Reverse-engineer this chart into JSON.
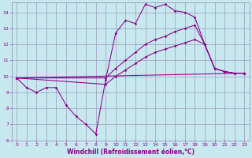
{
  "bg_color": "#c8e8f0",
  "grid_color": "#9999bb",
  "line_color": "#880088",
  "xlabel": "Windchill (Refroidissement éolien,°C)",
  "xlim": [
    -0.5,
    23.5
  ],
  "ylim": [
    6,
    14.6
  ],
  "yticks": [
    6,
    7,
    8,
    9,
    10,
    11,
    12,
    13,
    14
  ],
  "xticks": [
    0,
    1,
    2,
    3,
    4,
    5,
    6,
    7,
    8,
    9,
    10,
    11,
    12,
    13,
    14,
    15,
    16,
    17,
    18,
    19,
    20,
    21,
    22,
    23
  ],
  "line1_x": [
    0,
    1,
    2,
    3,
    4,
    5,
    6,
    7,
    8,
    9,
    10,
    11,
    12,
    13,
    14,
    15,
    16,
    17,
    18,
    19,
    20,
    21,
    22,
    23
  ],
  "line1_y": [
    9.9,
    9.3,
    9.0,
    9.3,
    9.3,
    8.2,
    7.5,
    7.0,
    6.4,
    9.8,
    12.7,
    13.5,
    13.3,
    14.5,
    14.3,
    14.5,
    14.1,
    14.0,
    13.7,
    12.0,
    10.5,
    10.3,
    10.2,
    10.2
  ],
  "line2_x": [
    0,
    23
  ],
  "line2_y": [
    9.9,
    10.2
  ],
  "line3_x": [
    0,
    9,
    10,
    11,
    12,
    13,
    14,
    15,
    16,
    17,
    18,
    19,
    20,
    21,
    22,
    23
  ],
  "line3_y": [
    9.9,
    9.9,
    10.5,
    11.0,
    11.5,
    12.0,
    12.3,
    12.5,
    12.8,
    13.0,
    13.2,
    12.0,
    10.5,
    10.3,
    10.2,
    10.2
  ],
  "line4_x": [
    0,
    9,
    10,
    11,
    12,
    13,
    14,
    15,
    16,
    17,
    18,
    19,
    20,
    21,
    22,
    23
  ],
  "line4_y": [
    9.9,
    9.5,
    10.0,
    10.4,
    10.8,
    11.2,
    11.5,
    11.7,
    11.9,
    12.1,
    12.3,
    12.0,
    10.5,
    10.3,
    10.2,
    10.2
  ]
}
